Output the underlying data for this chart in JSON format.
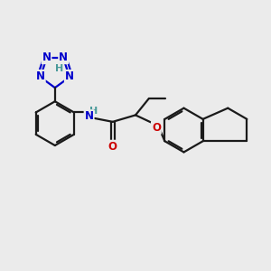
{
  "bg_color": "#ebebeb",
  "bond_color": "#1a1a1a",
  "bond_width": 1.6,
  "N_color": "#0000cc",
  "O_color": "#cc0000",
  "H_color": "#4a9a9a",
  "font_size_atom": 8.5,
  "fig_size": [
    3.0,
    3.0
  ],
  "dpi": 100,
  "xlim": [
    0,
    10
  ],
  "ylim": [
    0,
    10
  ]
}
